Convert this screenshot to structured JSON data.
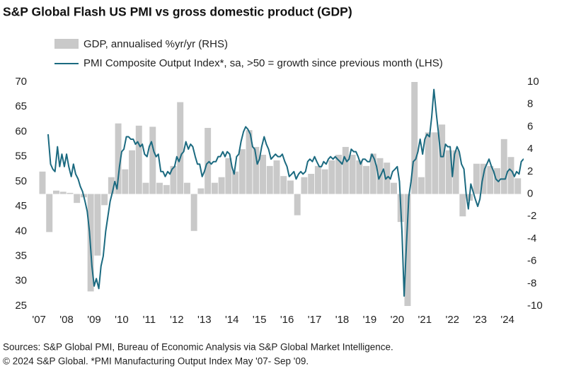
{
  "chart_data": {
    "type": "bar+line",
    "title": "S&P Global Flash US PMI vs gross domestic product (GDP)",
    "source": "Sources: S&P Global PMI, Bureau of Economic Analysis via S&P Global Market Intelligence.",
    "note": "© 2024 S&P Global.  *PMI Manufacturing Output Index May '07- Sep '09.",
    "xlim": [
      2006.74,
      2024.51
    ],
    "xticks": [
      {
        "value": 2007,
        "label": "'07"
      },
      {
        "value": 2008,
        "label": "'08"
      },
      {
        "value": 2009,
        "label": "'09"
      },
      {
        "value": 2010,
        "label": "'10"
      },
      {
        "value": 2011,
        "label": "'11"
      },
      {
        "value": 2012,
        "label": "'12"
      },
      {
        "value": 2013,
        "label": "'13"
      },
      {
        "value": 2014,
        "label": "'14"
      },
      {
        "value": 2015,
        "label": "'15"
      },
      {
        "value": 2016,
        "label": "'16"
      },
      {
        "value": 2017,
        "label": "'17"
      },
      {
        "value": 2018,
        "label": "'18"
      },
      {
        "value": 2019,
        "label": "'19"
      },
      {
        "value": 2020,
        "label": "'20"
      },
      {
        "value": 2021,
        "label": "'21"
      },
      {
        "value": 2022,
        "label": "'22"
      },
      {
        "value": 2023,
        "label": "'23"
      },
      {
        "value": 2024,
        "label": "'24"
      }
    ],
    "ylim": [
      25,
      70
    ],
    "yticks": [
      25,
      30,
      35,
      40,
      45,
      50,
      55,
      60,
      65,
      70
    ],
    "y2lim": [
      -10,
      10
    ],
    "y2ticks": [
      -10,
      -8,
      -6,
      -4,
      -2,
      0,
      2,
      4,
      6,
      8,
      10
    ],
    "grid": false,
    "series": [
      {
        "name": "GDP, annualised %yr/yr (RHS)",
        "type": "bar",
        "axis": "y2",
        "color": "#c9c9c9",
        "x": [
          2007.125,
          2007.375,
          2007.625,
          2007.875,
          2008.125,
          2008.375,
          2008.625,
          2008.875,
          2009.125,
          2009.375,
          2009.625,
          2009.875,
          2010.125,
          2010.375,
          2010.625,
          2010.875,
          2011.125,
          2011.375,
          2011.625,
          2011.875,
          2012.125,
          2012.375,
          2012.625,
          2012.875,
          2013.125,
          2013.375,
          2013.625,
          2013.875,
          2014.125,
          2014.375,
          2014.625,
          2014.875,
          2015.125,
          2015.375,
          2015.625,
          2015.875,
          2016.125,
          2016.375,
          2016.625,
          2016.875,
          2017.125,
          2017.375,
          2017.625,
          2017.875,
          2018.125,
          2018.375,
          2018.625,
          2018.875,
          2019.125,
          2019.375,
          2019.625,
          2019.875,
          2020.125,
          2020.375,
          2020.625,
          2020.875,
          2021.125,
          2021.375,
          2021.625,
          2021.875,
          2022.125,
          2022.375,
          2022.625,
          2022.875,
          2023.125,
          2023.375,
          2023.625,
          2023.875,
          2024.125,
          2024.375
        ],
        "values": [
          2.0,
          -3.4,
          0.3,
          0.2,
          0.1,
          -0.8,
          -0.3,
          -8.7,
          -5.5,
          -1.0,
          1.5,
          6.3,
          2.2,
          3.9,
          6.1,
          1.0,
          6.0,
          1.0,
          0.8,
          2.5,
          8.2,
          1.0,
          -3.3,
          0.5,
          5.9,
          1.0,
          1.5,
          3.2,
          2.0,
          4.0,
          5.7,
          4.2,
          3.5,
          2.5,
          3.0,
          1.6,
          1.2,
          -1.9,
          1.5,
          1.8,
          2.5,
          2.2,
          3.0,
          3.5,
          4.2,
          3.5,
          3.0,
          2.5,
          3.6,
          3.2,
          2.8,
          1.0,
          -2.5,
          -10,
          10,
          1.5,
          5.5,
          5.5,
          6.2,
          3.9,
          3.9,
          -2.0,
          -0.6,
          2.7,
          2.7,
          2.5,
          2.3,
          4.9,
          3.3,
          1.4
        ]
      },
      {
        "name": "PMI Composite Output Index*, sa, >50 = growth since previous month (LHS)",
        "type": "line",
        "color": "#1b6a80",
        "x": [
          2007.33,
          2007.42,
          2007.5,
          2007.58,
          2007.67,
          2007.75,
          2007.83,
          2007.92,
          2008,
          2008.08,
          2008.17,
          2008.25,
          2008.33,
          2008.42,
          2008.5,
          2008.58,
          2008.67,
          2008.75,
          2008.83,
          2008.92,
          2009,
          2009.08,
          2009.17,
          2009.25,
          2009.33,
          2009.42,
          2009.5,
          2009.58,
          2009.67,
          2009.75,
          2009.83,
          2009.92,
          2010,
          2010.08,
          2010.17,
          2010.25,
          2010.33,
          2010.42,
          2010.5,
          2010.58,
          2010.67,
          2010.75,
          2010.83,
          2010.92,
          2011,
          2011.08,
          2011.17,
          2011.25,
          2011.33,
          2011.42,
          2011.5,
          2011.58,
          2011.67,
          2011.75,
          2011.83,
          2011.92,
          2012,
          2012.08,
          2012.17,
          2012.25,
          2012.33,
          2012.42,
          2012.5,
          2012.58,
          2012.67,
          2012.75,
          2012.83,
          2012.92,
          2013,
          2013.08,
          2013.17,
          2013.25,
          2013.33,
          2013.42,
          2013.5,
          2013.58,
          2013.67,
          2013.75,
          2013.83,
          2013.92,
          2014,
          2014.08,
          2014.17,
          2014.25,
          2014.33,
          2014.42,
          2014.5,
          2014.58,
          2014.67,
          2014.75,
          2014.83,
          2014.92,
          2015,
          2015.08,
          2015.17,
          2015.25,
          2015.33,
          2015.42,
          2015.5,
          2015.58,
          2015.67,
          2015.75,
          2015.83,
          2015.92,
          2016,
          2016.08,
          2016.17,
          2016.25,
          2016.33,
          2016.42,
          2016.5,
          2016.58,
          2016.67,
          2016.75,
          2016.83,
          2016.92,
          2017,
          2017.08,
          2017.17,
          2017.25,
          2017.33,
          2017.42,
          2017.5,
          2017.58,
          2017.67,
          2017.75,
          2017.83,
          2017.92,
          2018,
          2018.08,
          2018.17,
          2018.25,
          2018.33,
          2018.42,
          2018.5,
          2018.58,
          2018.67,
          2018.75,
          2018.83,
          2018.92,
          2019,
          2019.08,
          2019.17,
          2019.25,
          2019.33,
          2019.42,
          2019.5,
          2019.58,
          2019.67,
          2019.75,
          2019.83,
          2019.92,
          2020,
          2020.08,
          2020.17,
          2020.25,
          2020.33,
          2020.42,
          2020.5,
          2020.58,
          2020.67,
          2020.75,
          2020.83,
          2020.92,
          2021,
          2021.08,
          2021.17,
          2021.25,
          2021.33,
          2021.42,
          2021.5,
          2021.58,
          2021.67,
          2021.75,
          2021.83,
          2021.92,
          2022,
          2022.08,
          2022.17,
          2022.25,
          2022.33,
          2022.42,
          2022.5,
          2022.58,
          2022.67,
          2022.75,
          2022.83,
          2022.92,
          2023,
          2023.08,
          2023.17,
          2023.25,
          2023.33,
          2023.42,
          2023.5,
          2023.58,
          2023.67,
          2023.75,
          2023.83,
          2023.92,
          2024,
          2024.08,
          2024.17,
          2024.25,
          2024.33,
          2024.42,
          2024.5,
          2024.58,
          2024.67
        ],
        "values": [
          59.5,
          53.5,
          52.5,
          52,
          57,
          53,
          55.5,
          53,
          55.5,
          53,
          51,
          53.5,
          51.5,
          50.5,
          49,
          48,
          46,
          44,
          40,
          33,
          29,
          30.5,
          28.5,
          33,
          35,
          40,
          43,
          46,
          48,
          50,
          48.5,
          53,
          56,
          56.5,
          59,
          59,
          58.5,
          58.5,
          57.5,
          58,
          57,
          57.5,
          55.5,
          55,
          57,
          58,
          56,
          55,
          55.5,
          52,
          52,
          51,
          52,
          51.5,
          52.5,
          53,
          55,
          54,
          55.5,
          56,
          58,
          56.5,
          57.5,
          57,
          55,
          53.5,
          53.5,
          51,
          52,
          53.5,
          54,
          53.5,
          54,
          54,
          55,
          55,
          56,
          55,
          56,
          55.5,
          53,
          51.5,
          55,
          55.5,
          58,
          60,
          61,
          60.5,
          59.5,
          57,
          56.5,
          53.5,
          54.5,
          57,
          59,
          57.5,
          56.5,
          54.5,
          55,
          55.5,
          55,
          55,
          55.5,
          54,
          53,
          51,
          51.5,
          52,
          50.5,
          51.5,
          52,
          51.5,
          52,
          54,
          54.5,
          54,
          55,
          54,
          53,
          53,
          54,
          53.5,
          54.5,
          55,
          54.5,
          55,
          54.5,
          54,
          53.5,
          55,
          54,
          54.5,
          56.5,
          56,
          56,
          55,
          53.5,
          54.5,
          54.5,
          54,
          54,
          55.5,
          54.5,
          53,
          50.5,
          51.5,
          52.5,
          50.5,
          51,
          50.5,
          52,
          52.5,
          53,
          50,
          40,
          27,
          37,
          47,
          50,
          54,
          54.5,
          56,
          58.5,
          55.5,
          58.5,
          59.5,
          59,
          63,
          68.5,
          63.5,
          59.5,
          55,
          55,
          57.5,
          57,
          57,
          51,
          55.5,
          57,
          56,
          53.5,
          52.5,
          47.5,
          44.5,
          49.5,
          48,
          46.5,
          45,
          46.5,
          50,
          52.5,
          53.5,
          54.5,
          53,
          52,
          50.5,
          50,
          50.5,
          50.5,
          50.5,
          52,
          52.5,
          52,
          51,
          52,
          51.5,
          54,
          54.5,
          54.5
        ]
      }
    ]
  }
}
